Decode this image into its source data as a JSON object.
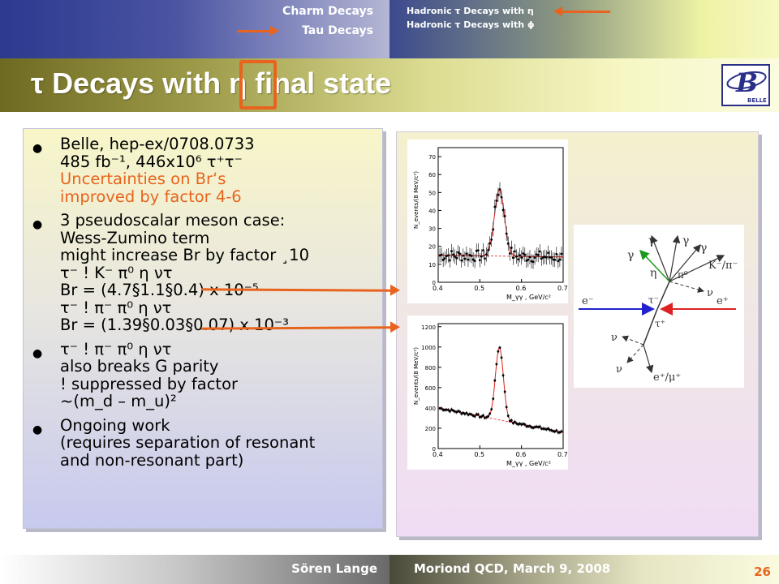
{
  "nav": {
    "left_items": [
      "Charm Decays",
      "Tau Decays"
    ],
    "right_items": [
      "Hadronic τ Decays with η",
      "Hadronic τ Decays with ϕ"
    ]
  },
  "title": {
    "text": "τ Decays with  η  final state",
    "logo_text": "BELLE",
    "logo_letter": "B"
  },
  "bullets": [
    {
      "lines": [
        {
          "text": "Belle, hep-ex/0708.0733",
          "orange": false
        },
        {
          "text": "485 fb⁻¹, 446x10⁶ τ⁺τ⁻",
          "orange": false
        },
        {
          "text": "Uncertainties on Br‘s",
          "orange": true
        },
        {
          "text": "improved by factor 4-6",
          "orange": true
        }
      ]
    },
    {
      "lines": [
        {
          "text": "3 pseudoscalar meson case:",
          "orange": false
        },
        {
          "text": "Wess-Zumino term",
          "orange": false
        },
        {
          "text": "might increase Br by factor ¸10",
          "orange": false
        },
        {
          "text": "τ⁻ ! K⁻ π⁰ η ντ",
          "orange": false
        },
        {
          "text": "Br = (4.7§1.1§0.4) x 10⁻⁵",
          "orange": false
        },
        {
          "text": "τ⁻ ! π⁻ π⁰ η ντ",
          "orange": false
        },
        {
          "text": "Br = (1.39§0.03§0.07) x 10⁻³",
          "orange": false
        }
      ]
    },
    {
      "lines": [
        {
          "text": "τ⁻ ! π⁻ π⁰ η ντ",
          "orange": false
        },
        {
          "text": "also breaks G parity",
          "orange": false
        },
        {
          "text": "! suppressed by factor",
          "orange": false
        },
        {
          "text": "~(m_d – m_u)²",
          "orange": false
        }
      ]
    },
    {
      "lines": [
        {
          "text": "Ongoing work",
          "orange": false
        },
        {
          "text": "(requires separation of resonant",
          "orange": false
        },
        {
          "text": "and non-resonant part)",
          "orange": false
        }
      ]
    }
  ],
  "plots": [
    {
      "ylabel": "N_events/(8 MeV/c²)",
      "xlabel": "M_γγ , GeV/c²",
      "x_ticks": [
        "0.4",
        "0.5",
        "0.6",
        "0.7"
      ],
      "y_ticks": [
        "0",
        "10",
        "20",
        "30",
        "40",
        "50",
        "60",
        "70"
      ],
      "xlim": [
        0.4,
        0.7
      ],
      "ylim": [
        0,
        75
      ],
      "background": {
        "a": 15,
        "b": -3
      },
      "peak": {
        "mean": 0.547,
        "sigma": 0.012,
        "height": 37
      },
      "error_bar": 4
    },
    {
      "ylabel": "N_events/(8 MeV/c²)",
      "xlabel": "M_γγ , GeV/c²",
      "x_ticks": [
        "0.4",
        "0.5",
        "0.6",
        "0.7"
      ],
      "y_ticks": [
        "0",
        "200",
        "400",
        "600",
        "800",
        "1000",
        "1200"
      ],
      "xlim": [
        0.4,
        0.7
      ],
      "ylim": [
        0,
        1230
      ],
      "background": {
        "a": 400,
        "b": -805
      },
      "peak": {
        "mean": 0.547,
        "sigma": 0.0095,
        "height": 715
      },
      "error_bar": 18
    }
  ],
  "diagram": {
    "labels": {
      "gamma": "γ",
      "eta": "η",
      "pi0": "π⁰",
      "k_pi": "K⁻/π⁻",
      "nu": "ν",
      "e_minus": "e⁻",
      "e_plus": "e⁺",
      "tau_minus": "τ⁻",
      "tau_plus": "τ⁺",
      "e_mu": "e⁺/μ⁺"
    }
  },
  "footer": {
    "author": "Sören Lange",
    "conference": "Moriond QCD, March 9, 2008",
    "page": "26"
  }
}
